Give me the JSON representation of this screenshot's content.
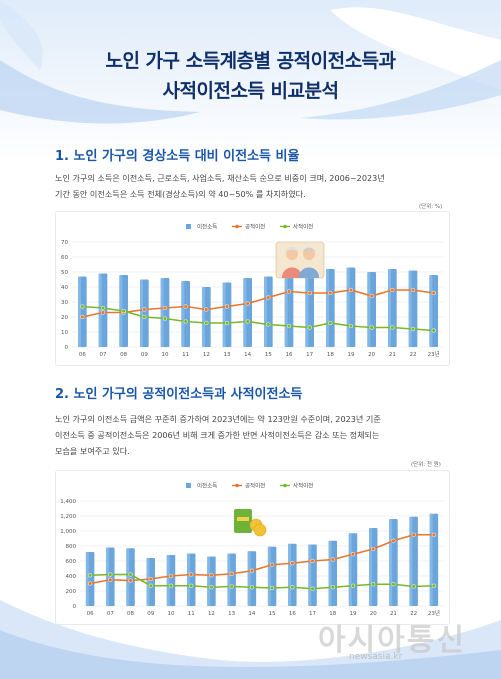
{
  "header": {
    "title_line1": "노인 가구 소득계층별 공적이전소득과",
    "title_line2": "사적이전소득 비교분석"
  },
  "section1": {
    "heading": "1. 노인 가구의 경상소득 대비 이전소득 비율",
    "paragraph_line1": "노인 가구의 소득은 이전소득, 근로소득, 사업소득, 재산소득 순으로 비중이 크며, 2006~2023년",
    "paragraph_line2": "기간 동안 이전소득은 소득 전체(경상소득)의 약 40~50% 를 차지하였다.",
    "unit": "(단위: %)"
  },
  "section2": {
    "heading": "2. 노인 가구의 공적이전소득과 사적이전소득",
    "paragraph_line1": "노인 가구의 이전소득 금액은 꾸준히 증가하여 2023년에는 약 123만원 수준이며, 2023년 기준",
    "paragraph_line2": "이전소득 중 공적이전소득은 2006년 비해 크게 증가한 반면 사적이전소득은 감소 또는 정체되는",
    "paragraph_line3": "모습을 보여주고 있다.",
    "unit": "(단위: 천 원)"
  },
  "watermark": {
    "main": "아시아통신",
    "sub": "newsasia.kr"
  },
  "colors": {
    "bar": "#6aa6dc",
    "public": "#e8772e",
    "private": "#79b82a",
    "title": "#0f2f6a",
    "heading": "#1a56a8"
  },
  "chart_data": [
    {
      "type": "bar",
      "categories": [
        "06",
        "07",
        "08",
        "09",
        "10",
        "11",
        "12",
        "13",
        "14",
        "15",
        "16",
        "17",
        "18",
        "19",
        "20",
        "21",
        "22",
        "23년"
      ],
      "series": [
        {
          "name": "이전소득",
          "type": "bar",
          "values": [
            47,
            49,
            48,
            45,
            46,
            44,
            40,
            43,
            46,
            47,
            51,
            49,
            52,
            53,
            50,
            52,
            51,
            48
          ]
        },
        {
          "name": "공적이전",
          "type": "line",
          "values": [
            20,
            23,
            23,
            25,
            26,
            27,
            25,
            27,
            29,
            33,
            37,
            36,
            36,
            38,
            34,
            38,
            38,
            36
          ]
        },
        {
          "name": "사적이전",
          "type": "line",
          "values": [
            27,
            26,
            24,
            20,
            19,
            17,
            16,
            16,
            17,
            15,
            14,
            13,
            16,
            14,
            13,
            13,
            12,
            11
          ]
        }
      ],
      "yticks": [
        0,
        10,
        20,
        30,
        40,
        50,
        60,
        70
      ],
      "ylim": [
        0,
        70
      ],
      "legend": "top-center"
    },
    {
      "type": "bar",
      "categories": [
        "06",
        "07",
        "08",
        "09",
        "10",
        "11",
        "12",
        "13",
        "14",
        "15",
        "16",
        "17",
        "18",
        "19",
        "20",
        "21",
        "22",
        "23년"
      ],
      "series": [
        {
          "name": "이전소득",
          "type": "bar",
          "values": [
            720,
            780,
            770,
            640,
            680,
            700,
            660,
            700,
            730,
            790,
            830,
            820,
            870,
            970,
            1040,
            1160,
            1190,
            1230
          ]
        },
        {
          "name": "공적이전",
          "type": "line",
          "values": [
            300,
            350,
            340,
            360,
            400,
            420,
            410,
            430,
            470,
            550,
            570,
            600,
            620,
            690,
            760,
            870,
            950,
            950
          ]
        },
        {
          "name": "사적이전",
          "type": "line",
          "values": [
            410,
            420,
            420,
            270,
            270,
            270,
            250,
            260,
            250,
            240,
            250,
            230,
            250,
            270,
            290,
            290,
            260,
            270
          ]
        }
      ],
      "yticks": [
        0,
        200,
        400,
        600,
        800,
        1000,
        1200,
        1400
      ],
      "ylim": [
        0,
        1400
      ],
      "legend": "top-center"
    }
  ]
}
